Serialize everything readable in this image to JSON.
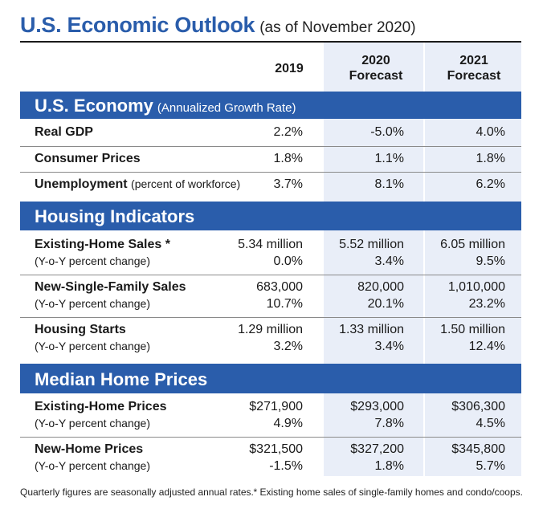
{
  "title": {
    "main": "U.S. Economic Outlook",
    "sub": "(as of November 2020)"
  },
  "columns": [
    {
      "line1": "2019",
      "line2": ""
    },
    {
      "line1": "2020",
      "line2": "Forecast"
    },
    {
      "line1": "2021",
      "line2": "Forecast"
    }
  ],
  "sections": {
    "economy": {
      "title": "U.S. Economy",
      "subtitle": "(Annualized Growth Rate)",
      "rows": [
        {
          "label": "Real GDP",
          "note": "",
          "values": [
            "2.2%",
            "-5.0%",
            "4.0%"
          ]
        },
        {
          "label": "Consumer Prices",
          "note": "",
          "values": [
            "1.8%",
            "1.1%",
            "1.8%"
          ]
        },
        {
          "label": "Unemployment",
          "note": "(percent of workforce)",
          "values": [
            "3.7%",
            "8.1%",
            "6.2%"
          ]
        }
      ]
    },
    "housing": {
      "title": "Housing Indicators",
      "rows": [
        {
          "label": "Existing-Home Sales *",
          "sublabel": "(Y-o-Y percent change)",
          "values": [
            "5.34 million",
            "5.52 million",
            "6.05 million"
          ],
          "changes": [
            "0.0%",
            "3.4%",
            "9.5%"
          ]
        },
        {
          "label": "New-Single-Family Sales",
          "sublabel": "(Y-o-Y percent change)",
          "values": [
            "683,000",
            "820,000",
            "1,010,000"
          ],
          "changes": [
            "10.7%",
            "20.1%",
            "23.2%"
          ]
        },
        {
          "label": "Housing Starts",
          "sublabel": "(Y-o-Y percent change)",
          "values": [
            "1.29 million",
            "1.33 million",
            "1.50 million"
          ],
          "changes": [
            "3.2%",
            "3.4%",
            "12.4%"
          ]
        }
      ]
    },
    "prices": {
      "title": "Median Home Prices",
      "rows": [
        {
          "label": "Existing-Home Prices",
          "sublabel": "(Y-o-Y percent change)",
          "values": [
            "$271,900",
            "$293,000",
            "$306,300"
          ],
          "changes": [
            "4.9%",
            "7.8%",
            "4.5%"
          ]
        },
        {
          "label": "New-Home Prices",
          "sublabel": "(Y-o-Y percent change)",
          "values": [
            "$321,500",
            "$327,200",
            "$345,800"
          ],
          "changes": [
            "-1.5%",
            "1.8%",
            "5.7%"
          ]
        }
      ]
    }
  },
  "footnotes": {
    "left": "Quarterly figures are seasonally adjusted annual rates.",
    "right": "* Existing home sales of single-family homes and condo/coops."
  },
  "colors": {
    "accent": "#2a5dab",
    "shade": "#e9eef8"
  }
}
